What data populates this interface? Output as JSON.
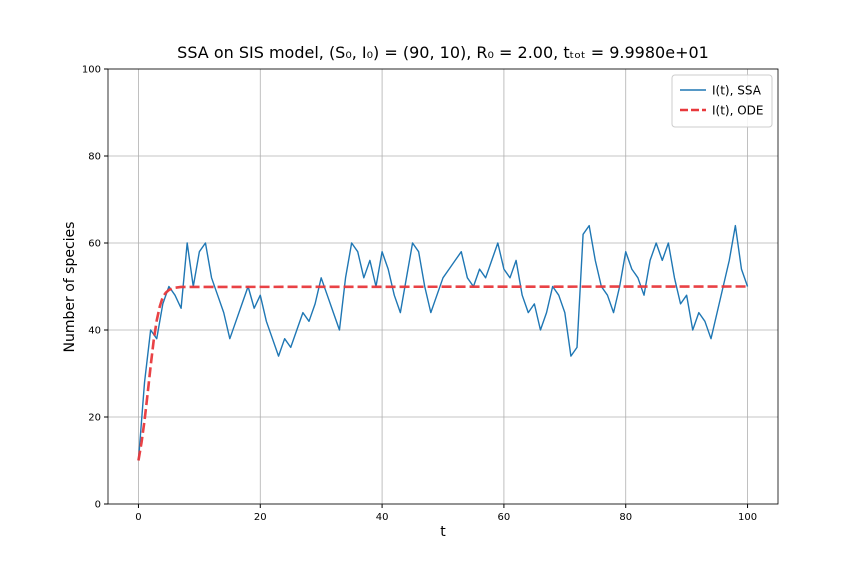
{
  "chart_data": {
    "type": "line",
    "title": "SSA on SIS model, (S₀, I₀) = (90, 10), R₀ = 2.00, tₜₒₜ = 9.9980e+01",
    "xlabel": "t",
    "ylabel": "Number of species",
    "xlim": [
      -5,
      105
    ],
    "ylim": [
      0,
      100
    ],
    "xticks": [
      0,
      20,
      40,
      60,
      80,
      100
    ],
    "yticks": [
      0,
      20,
      40,
      60,
      80,
      100
    ],
    "grid": true,
    "legend": "upper right",
    "series": [
      {
        "name": "I(t), SSA",
        "color": "#1f77b4",
        "linestyle": "solid",
        "x": [
          0,
          1,
          2,
          3,
          4,
          5,
          6,
          7,
          8,
          9,
          10,
          11,
          12,
          13,
          14,
          15,
          16,
          17,
          18,
          19,
          20,
          21,
          22,
          23,
          24,
          25,
          26,
          27,
          28,
          29,
          30,
          31,
          32,
          33,
          34,
          35,
          36,
          37,
          38,
          39,
          40,
          41,
          42,
          43,
          44,
          45,
          46,
          47,
          48,
          49,
          50,
          51,
          52,
          53,
          54,
          55,
          56,
          57,
          58,
          59,
          60,
          61,
          62,
          63,
          64,
          65,
          66,
          67,
          68,
          69,
          70,
          71,
          72,
          73,
          74,
          75,
          76,
          77,
          78,
          79,
          80,
          81,
          82,
          83,
          84,
          85,
          86,
          87,
          88,
          89,
          90,
          91,
          92,
          93,
          94,
          95,
          96,
          97,
          98,
          99,
          100
        ],
        "values": [
          10,
          28,
          40,
          38,
          46,
          50,
          48,
          45,
          60,
          50,
          58,
          60,
          52,
          48,
          44,
          38,
          42,
          46,
          50,
          45,
          48,
          42,
          38,
          34,
          38,
          36,
          40,
          44,
          42,
          46,
          52,
          48,
          44,
          40,
          52,
          60,
          58,
          52,
          56,
          50,
          58,
          54,
          48,
          44,
          52,
          60,
          58,
          50,
          44,
          48,
          52,
          54,
          56,
          58,
          52,
          50,
          54,
          52,
          56,
          60,
          54,
          52,
          56,
          48,
          44,
          46,
          40,
          44,
          50,
          48,
          44,
          34,
          36,
          62,
          64,
          56,
          50,
          48,
          44,
          50,
          58,
          54,
          52,
          48,
          56,
          60,
          56,
          60,
          52,
          46,
          48,
          40,
          44,
          42,
          38,
          44,
          50,
          56,
          64,
          54,
          50
        ]
      },
      {
        "name": "I(t), ODE",
        "color": "#e8383b",
        "linestyle": "dashed",
        "x": [
          0,
          0.5,
          1,
          1.5,
          2,
          2.5,
          3,
          3.5,
          4,
          4.5,
          5,
          5.5,
          6,
          7,
          100
        ],
        "values": [
          10,
          14.1,
          19.2,
          25.3,
          31.7,
          37.6,
          42.2,
          45.4,
          47.6,
          48.6,
          49.2,
          49.5,
          49.7,
          49.9,
          50
        ]
      }
    ]
  }
}
